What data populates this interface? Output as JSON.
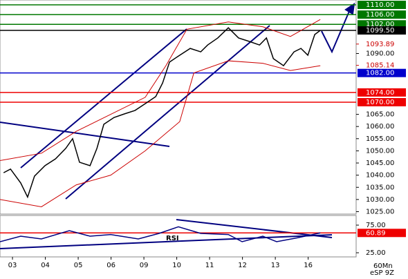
{
  "chart_data": [
    {
      "type": "line",
      "xlim": [
        -0.38,
        10.46
      ],
      "ylim": [
        1024,
        1112
      ],
      "yticks": [
        {
          "value": 1025,
          "label": "1025.00"
        },
        {
          "value": 1030,
          "label": "1030.00"
        },
        {
          "value": 1035,
          "label": "1035.00"
        },
        {
          "value": 1040,
          "label": "1040.00"
        },
        {
          "value": 1045,
          "label": "1045.00"
        },
        {
          "value": 1050,
          "label": "1050.00"
        },
        {
          "value": 1055,
          "label": "1055.00"
        },
        {
          "value": 1060,
          "label": "1060.00"
        },
        {
          "value": 1065,
          "label": "1065.00"
        },
        {
          "value": 1090,
          "label": "1090.00"
        }
      ],
      "series": [
        {
          "color": "#000000",
          "x": [
            -0.27,
            -0.06,
            0.25,
            0.46,
            0.67,
            0.99,
            1.31,
            1.62,
            1.83,
            2.04,
            2.36,
            2.57,
            2.78,
            3.09,
            3.41,
            3.73,
            4.04,
            4.36,
            4.57,
            4.78,
            5.09,
            5.41,
            5.73,
            5.94,
            6.25,
            6.57,
            6.88,
            7.2,
            7.52,
            7.73,
            7.94,
            8.25,
            8.57,
            8.78,
            8.99,
            9.2,
            9.37
          ],
          "values": [
            1041,
            1042.5,
            1036.8,
            1031,
            1039.6,
            1043.9,
            1046.7,
            1051,
            1055,
            1045.3,
            1043.9,
            1051,
            1060.9,
            1063.7,
            1065.2,
            1066.6,
            1069.4,
            1072.3,
            1077.9,
            1086.5,
            1089.3,
            1092.1,
            1090.7,
            1093.5,
            1096.4,
            1100.6,
            1096.4,
            1095,
            1093.5,
            1096.4,
            1087.9,
            1085,
            1090.7,
            1092.1,
            1089.3,
            1097.8,
            1099.5
          ]
        },
        {
          "color": "#cc0000",
          "x": [
            -0.38,
            0.88,
            1.94,
            2.99,
            4.04,
            4.67,
            5.31,
            6.57,
            7.62,
            8.46,
            9.37
          ],
          "values": [
            1046,
            1049,
            1058,
            1065,
            1072,
            1085,
            1100,
            1103,
            1101,
            1097,
            1104
          ]
        },
        {
          "color": "#cc0000",
          "x": [
            -0.38,
            0.88,
            1.94,
            2.99,
            4.04,
            5.09,
            5.52,
            6.57,
            7.62,
            8.46,
            9.37
          ],
          "values": [
            1030,
            1027,
            1036,
            1040,
            1050,
            1062,
            1082,
            1087,
            1086,
            1083,
            1085
          ]
        }
      ],
      "levels": [
        {
          "value": 1110,
          "label": "1110.00",
          "color": "#007700",
          "style": "box"
        },
        {
          "value": 1106,
          "label": "1106.00",
          "color": "#007700",
          "style": "box"
        },
        {
          "value": 1102,
          "label": "1102.00",
          "color": "#007700",
          "style": "box"
        },
        {
          "value": 1099.5,
          "label": "1099.50",
          "color": "#000000",
          "style": "box"
        },
        {
          "value": 1093.89,
          "label": "1093.89",
          "color": "#cc0000",
          "style": "text"
        },
        {
          "value": 1085.14,
          "label": "1085.14",
          "color": "#cc0000",
          "style": "text"
        },
        {
          "value": 1082,
          "label": "1082.00",
          "color": "#0000cc",
          "style": "box"
        },
        {
          "value": 1074,
          "label": "1074.00",
          "color": "#ee0000",
          "style": "box"
        },
        {
          "value": 1070,
          "label": "1070.00",
          "color": "#ee0000",
          "style": "box"
        }
      ]
    },
    {
      "type": "line",
      "title": "RSI",
      "xlim": [
        -0.38,
        10.46
      ],
      "ylim": [
        17.5,
        92.5
      ],
      "xticks": [
        {
          "value": 0,
          "label": "03"
        },
        {
          "value": 1,
          "label": "04"
        },
        {
          "value": 2,
          "label": "05"
        },
        {
          "value": 3,
          "label": "06"
        },
        {
          "value": 4,
          "label": "09"
        },
        {
          "value": 5,
          "label": "10"
        },
        {
          "value": 6,
          "label": "11"
        },
        {
          "value": 7,
          "label": "12"
        },
        {
          "value": 8,
          "label": "13"
        },
        {
          "value": 9,
          "label": "16"
        }
      ],
      "yticks": [
        {
          "value": 75,
          "label": "75.00"
        },
        {
          "value": 25,
          "label": "25.00"
        }
      ],
      "series": [
        {
          "color": "#000080",
          "x": [
            -0.38,
            0.25,
            0.88,
            1.73,
            2.36,
            2.99,
            3.83,
            4.46,
            5.05,
            5.73,
            6.57,
            6.99,
            7.62,
            8.04,
            8.67,
            9.37
          ],
          "values": [
            45,
            55,
            50,
            65,
            55,
            58,
            50,
            60,
            72,
            60,
            58,
            45,
            55,
            45,
            52,
            60.89
          ]
        }
      ],
      "levels": [
        {
          "value": 60.89,
          "label": "60.89",
          "color": "#ee0000",
          "style": "box"
        }
      ],
      "timeframe": "60Mn",
      "symbol": "eSP 9Z"
    }
  ]
}
